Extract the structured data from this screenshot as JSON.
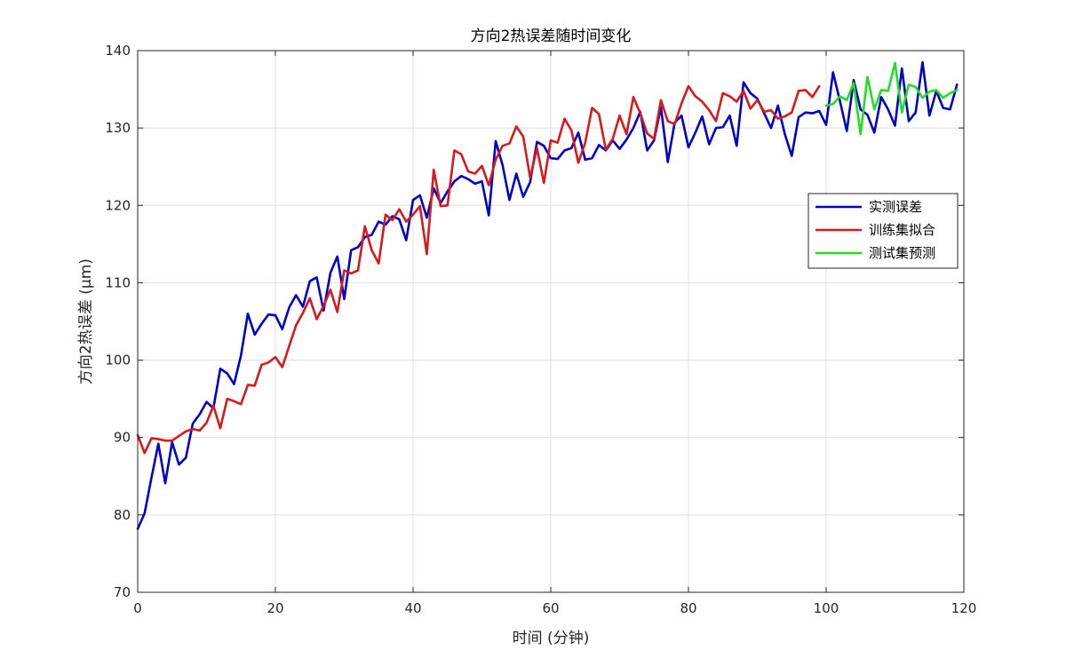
{
  "chart_data": {
    "type": "line",
    "title": "方向2热误差随时间变化",
    "xlabel": "时间 (分钟)",
    "ylabel": "方向2热误差 (μm)",
    "xlim": [
      0,
      120
    ],
    "ylim": [
      70,
      140
    ],
    "xticks": [
      0,
      20,
      40,
      60,
      80,
      100,
      120
    ],
    "yticks": [
      70,
      80,
      90,
      100,
      110,
      120,
      130,
      140
    ],
    "grid": true,
    "legend_position": "right",
    "series": [
      {
        "name": "实测误差",
        "color": "#0000c8",
        "x": [
          0,
          1,
          2,
          3,
          4,
          5,
          6,
          7,
          8,
          9,
          10,
          11,
          12,
          13,
          14,
          15,
          16,
          17,
          18,
          19,
          20,
          21,
          22,
          23,
          24,
          25,
          26,
          27,
          28,
          29,
          30,
          31,
          32,
          33,
          34,
          35,
          36,
          37,
          38,
          39,
          40,
          41,
          42,
          43,
          44,
          45,
          46,
          47,
          48,
          49,
          50,
          51,
          52,
          53,
          54,
          55,
          56,
          57,
          58,
          59,
          60,
          61,
          62,
          63,
          64,
          65,
          66,
          67,
          68,
          69,
          70,
          71,
          72,
          73,
          74,
          75,
          76,
          77,
          78,
          79,
          80,
          81,
          82,
          83,
          84,
          85,
          86,
          87,
          88,
          89,
          90,
          91,
          92,
          93,
          94,
          95,
          96,
          97,
          98,
          99,
          100,
          101,
          102,
          103,
          104,
          105,
          106,
          107,
          108,
          109,
          110,
          111,
          112,
          113,
          114,
          115,
          116,
          117,
          118,
          119
        ],
        "values": [
          78.2,
          80.2,
          84.8,
          89.2,
          84.1,
          89.4,
          86.5,
          87.4,
          91.8,
          93.0,
          94.6,
          93.8,
          98.9,
          98.3,
          96.9,
          100.6,
          106.0,
          103.3,
          104.7,
          105.9,
          105.8,
          104.0,
          106.8,
          108.4,
          106.9,
          110.2,
          110.7,
          106.4,
          111.3,
          113.4,
          107.9,
          114.2,
          114.6,
          115.9,
          116.2,
          117.9,
          117.5,
          118.6,
          118.2,
          115.5,
          120.7,
          121.3,
          118.4,
          122.2,
          120.3,
          121.8,
          123.1,
          123.8,
          123.4,
          122.8,
          123.1,
          118.7,
          128.3,
          125.2,
          120.7,
          124.1,
          121.1,
          123.0,
          128.2,
          127.7,
          126.1,
          126.0,
          127.1,
          127.4,
          129.4,
          125.9,
          126.1,
          127.8,
          127.1,
          128.4,
          127.3,
          128.5,
          130.0,
          132.1,
          127.1,
          128.4,
          132.7,
          125.6,
          130.7,
          131.6,
          127.5,
          129.4,
          131.5,
          127.9,
          130.0,
          130.1,
          131.6,
          127.7,
          135.9,
          134.5,
          133.8,
          131.9,
          130.0,
          132.9,
          129.2,
          126.4,
          131.4,
          132.0,
          131.9,
          132.2,
          130.4,
          137.2,
          133.5,
          129.6,
          136.2,
          132.4,
          131.7,
          129.4,
          134.0,
          132.4,
          130.3,
          137.7,
          130.9,
          132.0,
          138.5,
          131.6,
          134.8,
          132.6,
          132.4,
          135.6
        ]
      },
      {
        "name": "训练集拟合",
        "color": "#d7191c",
        "x": [
          0,
          1,
          2,
          3,
          4,
          5,
          6,
          7,
          8,
          9,
          10,
          11,
          12,
          13,
          14,
          15,
          16,
          17,
          18,
          19,
          20,
          21,
          22,
          23,
          24,
          25,
          26,
          27,
          28,
          29,
          30,
          31,
          32,
          33,
          34,
          35,
          36,
          37,
          38,
          39,
          40,
          41,
          42,
          43,
          44,
          45,
          46,
          47,
          48,
          49,
          50,
          51,
          52,
          53,
          54,
          55,
          56,
          57,
          58,
          59,
          60,
          61,
          62,
          63,
          64,
          65,
          66,
          67,
          68,
          69,
          70,
          71,
          72,
          73,
          74,
          75,
          76,
          77,
          78,
          79,
          80,
          81,
          82,
          83,
          84,
          85,
          86,
          87,
          88,
          89,
          90,
          91,
          92,
          93,
          94,
          95,
          96,
          97,
          98,
          99
        ],
        "values": [
          90.3,
          88.0,
          89.9,
          89.8,
          89.6,
          89.6,
          90.2,
          90.8,
          91.1,
          90.9,
          91.9,
          94.1,
          91.2,
          95.0,
          94.7,
          94.3,
          96.8,
          96.7,
          99.4,
          99.7,
          100.4,
          99.1,
          101.8,
          104.5,
          106.1,
          108.0,
          105.3,
          107.0,
          109.1,
          106.2,
          111.6,
          111.2,
          111.6,
          117.3,
          114.2,
          112.5,
          118.8,
          118.1,
          119.5,
          117.9,
          118.8,
          119.9,
          113.7,
          124.6,
          119.9,
          120.0,
          127.1,
          126.6,
          124.4,
          124.1,
          125.1,
          122.6,
          125.9,
          127.7,
          128.0,
          130.2,
          128.9,
          123.6,
          127.4,
          122.9,
          128.4,
          128.1,
          131.2,
          129.7,
          125.5,
          128.1,
          132.6,
          131.8,
          127.2,
          128.6,
          131.6,
          129.2,
          134.0,
          131.9,
          129.3,
          128.6,
          133.6,
          130.9,
          130.5,
          133.2,
          135.4,
          134.1,
          133.4,
          132.3,
          130.9,
          134.5,
          134.1,
          133.4,
          134.8,
          132.5,
          133.6,
          132.1,
          132.3,
          131.2,
          131.5,
          132.0,
          134.8,
          134.9,
          134.0,
          135.4
        ]
      },
      {
        "name": "测试集预测",
        "color": "#22dd22",
        "x": [
          100,
          101,
          102,
          103,
          104,
          105,
          106,
          107,
          108,
          109,
          110,
          111,
          112,
          113,
          114,
          115,
          116,
          117,
          118,
          119
        ],
        "values": [
          132.9,
          133.1,
          134.1,
          133.6,
          135.8,
          129.2,
          136.6,
          132.4,
          134.9,
          134.8,
          138.4,
          132.0,
          135.6,
          135.3,
          133.9,
          134.7,
          134.9,
          133.9,
          134.5,
          134.9
        ]
      }
    ]
  }
}
